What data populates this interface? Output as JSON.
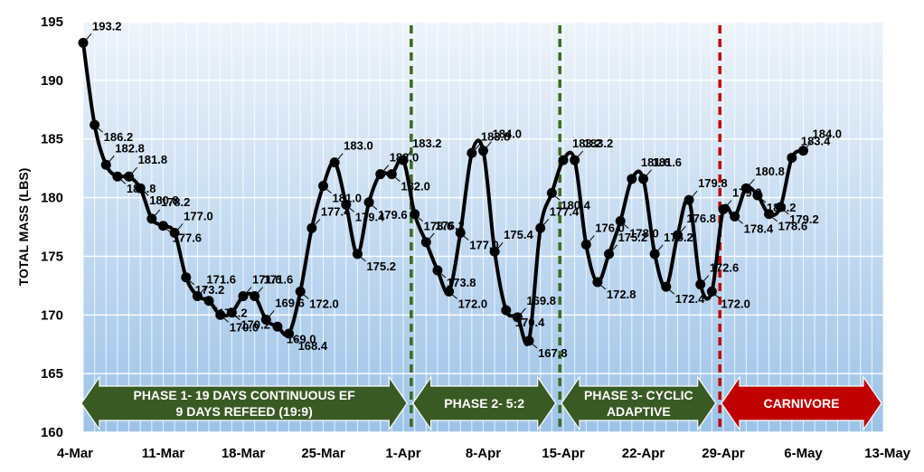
{
  "chart_data": {
    "type": "line",
    "title": "",
    "xlabel": "",
    "ylabel": "TOTAL MASS (LBS)",
    "ylim": [
      160,
      195
    ],
    "y_ticks": [
      "160",
      "165",
      "170",
      "175",
      "180",
      "185",
      "190",
      "195"
    ],
    "xlim_day": [
      0,
      70
    ],
    "x_ticks": [
      {
        "day": 0,
        "label": "4-Mar"
      },
      {
        "day": 7,
        "label": "11-Mar"
      },
      {
        "day": 14,
        "label": "18-Mar"
      },
      {
        "day": 21,
        "label": "25-Mar"
      },
      {
        "day": 28,
        "label": "1-Apr"
      },
      {
        "day": 35,
        "label": "8-Apr"
      },
      {
        "day": 42,
        "label": "15-Apr"
      },
      {
        "day": 49,
        "label": "22-Apr"
      },
      {
        "day": 56,
        "label": "29-Apr"
      },
      {
        "day": 63,
        "label": "6-May"
      },
      {
        "day": 70,
        "label": "13-May"
      }
    ],
    "grid": true,
    "series": [
      {
        "color": "#000000",
        "points": [
          {
            "day": 0,
            "value": 193.2,
            "label": "193.2"
          },
          {
            "day": 1,
            "value": 186.2,
            "label": "186.2"
          },
          {
            "day": 2,
            "value": 182.8,
            "label": "182.8"
          },
          {
            "day": 3,
            "value": 181.8,
            "label": "181.8"
          },
          {
            "day": 4,
            "value": 181.8,
            "label": "181.8"
          },
          {
            "day": 5,
            "value": 180.8,
            "label": "180.8"
          },
          {
            "day": 6,
            "value": 178.2,
            "label": "178.2"
          },
          {
            "day": 7,
            "value": 177.6,
            "label": "177.6"
          },
          {
            "day": 8,
            "value": 177.0,
            "label": "177.0"
          },
          {
            "day": 9,
            "value": 173.2,
            "label": "173.2"
          },
          {
            "day": 10,
            "value": 171.6,
            "label": "171.6"
          },
          {
            "day": 11,
            "value": 171.2,
            "label": "171.2"
          },
          {
            "day": 12,
            "value": 170.0,
            "label": "170.0"
          },
          {
            "day": 13,
            "value": 170.2,
            "label": "170.2"
          },
          {
            "day": 14,
            "value": 171.6,
            "label": "171.6"
          },
          {
            "day": 15,
            "value": 171.6,
            "label": "171.6"
          },
          {
            "day": 16,
            "value": 169.6,
            "label": "169.6"
          },
          {
            "day": 17,
            "value": 169.0,
            "label": "169.0"
          },
          {
            "day": 18,
            "value": 168.4,
            "label": "168.4"
          },
          {
            "day": 19,
            "value": 172.0,
            "label": "172.0"
          },
          {
            "day": 20,
            "value": 177.4,
            "label": "177.4"
          },
          {
            "day": 21,
            "value": 181.0,
            "label": "181.0"
          },
          {
            "day": 22,
            "value": 183.0,
            "label": "183.0"
          },
          {
            "day": 23,
            "value": 179.4,
            "label": "179.4"
          },
          {
            "day": 24,
            "value": 175.2,
            "label": "175.2"
          },
          {
            "day": 25,
            "value": 179.6,
            "label": "179.6"
          },
          {
            "day": 26,
            "value": 182.0,
            "label": "182.0"
          },
          {
            "day": 27,
            "value": 182.0,
            "label": "182.0"
          },
          {
            "day": 28,
            "value": 183.2,
            "label": "183.2"
          },
          {
            "day": 29,
            "value": 178.6,
            "label": "178.6"
          },
          {
            "day": 30,
            "value": 176.2,
            "label": "176.2"
          },
          {
            "day": 31,
            "value": 173.8,
            "label": "173.8"
          },
          {
            "day": 32,
            "value": 172.0,
            "label": "172.0"
          },
          {
            "day": 33,
            "value": 177.0,
            "label": "177.0"
          },
          {
            "day": 34,
            "value": 183.8,
            "label": "183.8"
          },
          {
            "day": 35,
            "value": 184.0,
            "label": "184.0"
          },
          {
            "day": 36,
            "value": 175.4,
            "label": "175.4"
          },
          {
            "day": 37,
            "value": 170.4,
            "label": "170.4"
          },
          {
            "day": 38,
            "value": 169.8,
            "label": "169.8"
          },
          {
            "day": 39,
            "value": 167.8,
            "label": "167.8"
          },
          {
            "day": 40,
            "value": 177.4,
            "label": "177.4"
          },
          {
            "day": 41,
            "value": 180.4,
            "label": "180.4"
          },
          {
            "day": 42,
            "value": 183.2,
            "label": "183.2"
          },
          {
            "day": 43,
            "value": 183.2,
            "label": "183.2"
          },
          {
            "day": 44,
            "value": 176.0,
            "label": "176.0"
          },
          {
            "day": 45,
            "value": 172.8,
            "label": "172.8"
          },
          {
            "day": 46,
            "value": 175.2,
            "label": "175.2"
          },
          {
            "day": 47,
            "value": 178.0,
            "label": "178.0"
          },
          {
            "day": 48,
            "value": 181.6,
            "label": "181.6"
          },
          {
            "day": 49,
            "value": 181.6,
            "label": "181.6"
          },
          {
            "day": 50,
            "value": 175.2,
            "label": "175.2"
          },
          {
            "day": 51,
            "value": 172.4,
            "label": "172.4"
          },
          {
            "day": 52,
            "value": 176.8,
            "label": "176.8"
          },
          {
            "day": 53,
            "value": 179.8,
            "label": "179.8"
          },
          {
            "day": 54,
            "value": 172.6,
            "label": "172.6"
          },
          {
            "day": 55,
            "value": 172.0,
            "label": "172.0"
          },
          {
            "day": 56,
            "value": 179.0,
            "label": "179.0"
          },
          {
            "day": 57,
            "value": 178.4,
            "label": "178.4"
          },
          {
            "day": 58,
            "value": 180.8,
            "label": "180.8"
          },
          {
            "day": 59,
            "value": 180.2,
            "label": "180.2"
          },
          {
            "day": 60,
            "value": 178.6,
            "label": "178.6"
          },
          {
            "day": 61,
            "value": 179.2,
            "label": "179.2"
          },
          {
            "day": 62,
            "value": 183.4,
            "label": "183.4"
          },
          {
            "day": 63,
            "value": 184.0,
            "label": "184.0"
          }
        ]
      }
    ],
    "phase_dividers": [
      {
        "day": 28.7,
        "color": "#3a6b1f",
        "style": "dashed"
      },
      {
        "day": 41.7,
        "color": "#3a6b1f",
        "style": "dashed"
      },
      {
        "day": 55.7,
        "color": "#c00000",
        "style": "dashed"
      }
    ],
    "phases": [
      {
        "lines": [
          "PHASE 1- 19 DAYS CONTINUOUS EF",
          "9 DAYS REFEED (19:9)"
        ],
        "start_day": 0,
        "end_day": 28.5,
        "color": "#3a5a24"
      },
      {
        "lines": [
          "PHASE 2- 5:2"
        ],
        "start_day": 29,
        "end_day": 41.5,
        "color": "#3a5a24"
      },
      {
        "lines": [
          "PHASE 3- CYCLIC",
          "ADAPTIVE"
        ],
        "start_day": 42,
        "end_day": 55.5,
        "color": "#3a5a24"
      },
      {
        "lines": [
          "CARNIVORE"
        ],
        "start_day": 56,
        "end_day": 70,
        "color": "#c00000"
      }
    ]
  }
}
